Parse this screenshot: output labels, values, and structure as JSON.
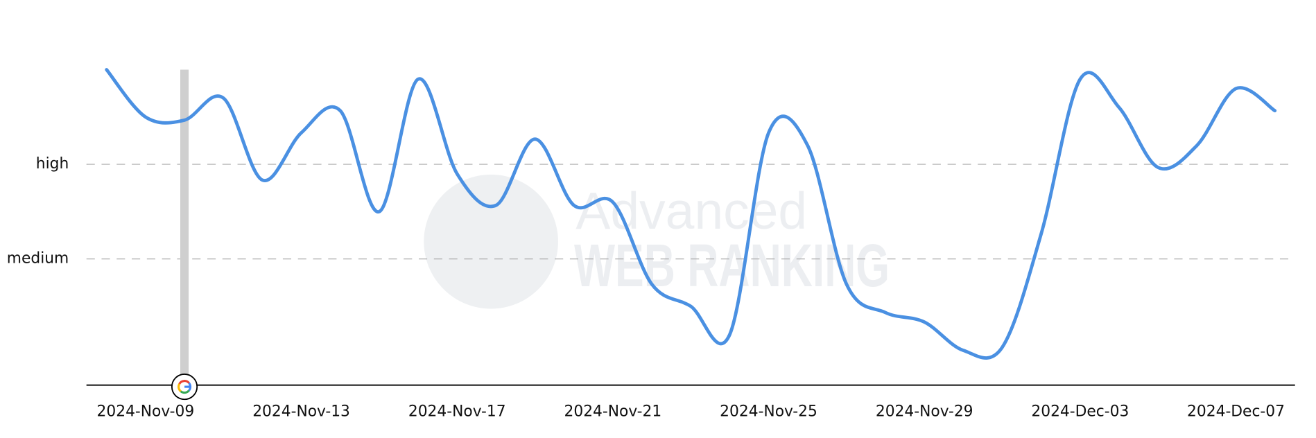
{
  "chart_data": {
    "type": "line",
    "watermark": [
      "Advanced",
      "WEB RANKING"
    ],
    "categories": [
      null,
      "2024-Nov-09",
      null,
      null,
      null,
      "2024-Nov-13",
      null,
      null,
      null,
      "2024-Nov-17",
      null,
      null,
      null,
      "2024-Nov-21",
      null,
      null,
      null,
      "2024-Nov-25",
      null,
      null,
      null,
      "2024-Nov-29",
      null,
      null,
      null,
      "2024-Dec-03",
      null,
      null,
      null,
      "2024-Dec-07",
      null
    ],
    "series": [
      {
        "color": "#4a90e2",
        "values": [
          10.0,
          8.5,
          8.4,
          9.1,
          6.5,
          8.0,
          8.7,
          5.5,
          9.7,
          6.7,
          5.7,
          7.8,
          5.7,
          5.8,
          3.2,
          2.5,
          1.6,
          8.0,
          7.6,
          3.2,
          2.3,
          2.0,
          1.1,
          1.2,
          4.8,
          9.7,
          8.8,
          6.9,
          7.6,
          9.4,
          8.7
        ]
      }
    ],
    "ylim": [
      0,
      10
    ],
    "yticks": [
      {
        "value": 4,
        "label": "medium"
      },
      {
        "value": 7,
        "label": "high"
      }
    ],
    "grid": true,
    "event_index": 2
  }
}
